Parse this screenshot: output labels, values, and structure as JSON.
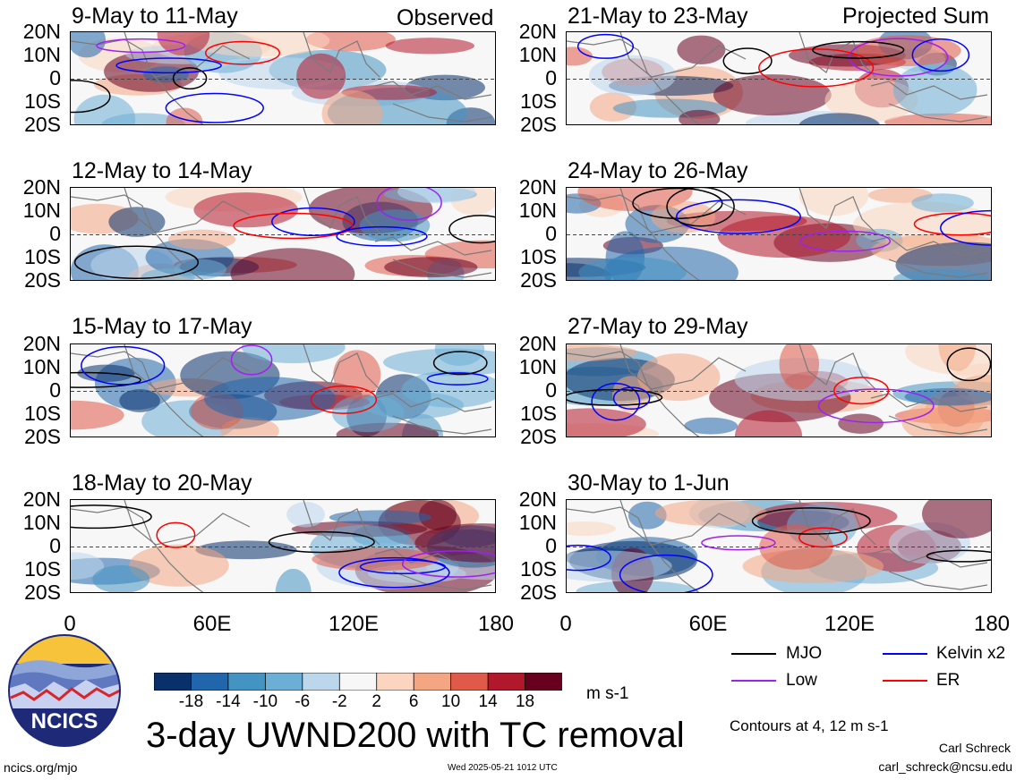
{
  "panels": [
    {
      "title": "9-May to 11-May",
      "tag": "Observed"
    },
    {
      "title": "12-May to 14-May",
      "tag": ""
    },
    {
      "title": "15-May to 17-May",
      "tag": ""
    },
    {
      "title": "18-May to 20-May",
      "tag": ""
    },
    {
      "title": "21-May to 23-May",
      "tag": "Projected Sum"
    },
    {
      "title": "24-May to 26-May",
      "tag": ""
    },
    {
      "title": "27-May to 29-May",
      "tag": ""
    },
    {
      "title": "30-May to 1-Jun",
      "tag": ""
    }
  ],
  "lat_labels": [
    "20N",
    "10N",
    "0",
    "10S",
    "20S"
  ],
  "lon_labels": [
    "0",
    "60E",
    "120E",
    "180"
  ],
  "colorbar": {
    "ticks": [
      "-18",
      "-14",
      "-10",
      "-6",
      "-2",
      "2",
      "6",
      "10",
      "14",
      "18"
    ],
    "colors": [
      "#08306b",
      "#2166ac",
      "#4393c3",
      "#6baed6",
      "#bcd7ec",
      "#f7f7f7",
      "#fbd5c0",
      "#f4a582",
      "#e05a49",
      "#b2182b",
      "#67001f"
    ],
    "units": "m s-1"
  },
  "legend": {
    "mjo": {
      "label": "MJO",
      "color": "#000000"
    },
    "kelvin": {
      "label": "Kelvin x2",
      "color": "#0000ff"
    },
    "low": {
      "label": "Low",
      "color": "#a020f0"
    },
    "er": {
      "label": "ER",
      "color": "#ff0000"
    }
  },
  "contours_note": "Contours at 4, 12 m s-1",
  "main_title": "3-day UWND200 with TC removal",
  "logo_text": "NCICS",
  "footer": {
    "url": "ncics.org/mjo",
    "timestamp": "Wed 2025-05-21 1012 UTC",
    "author": "Carl Schreck",
    "email": "carl_schreck@ncsu.edu"
  }
}
